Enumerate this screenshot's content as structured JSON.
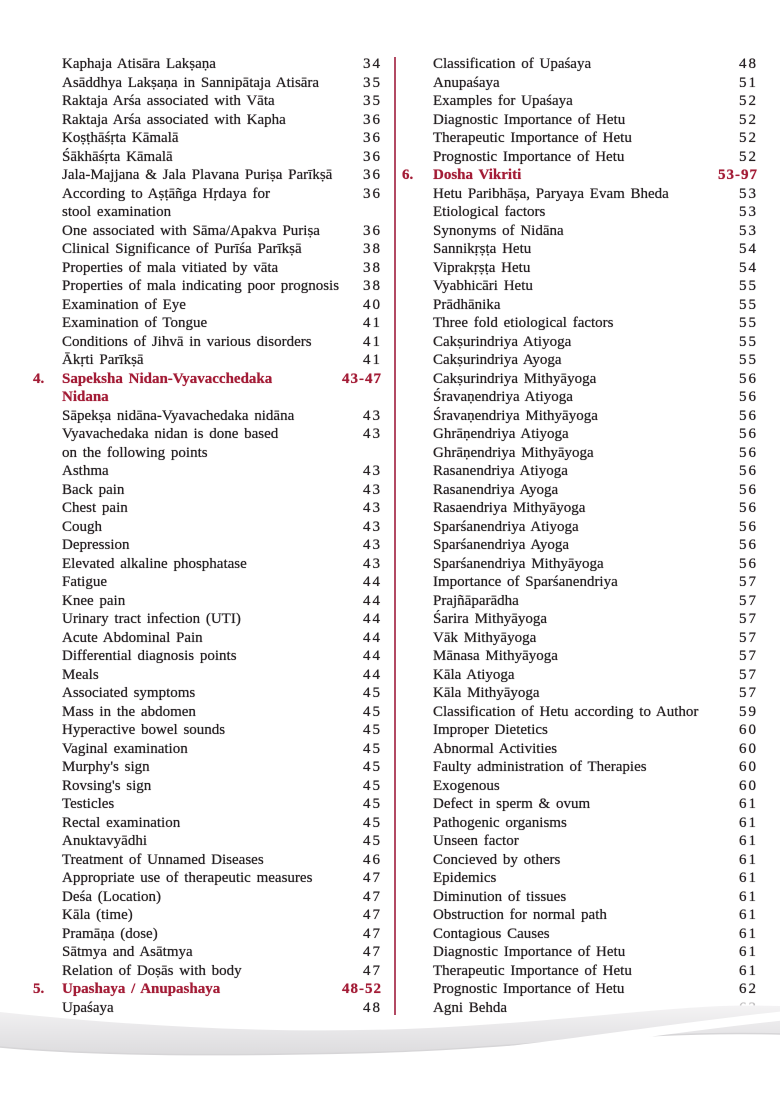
{
  "colors": {
    "text": "#262123",
    "accent": "#a31c36",
    "divider": "#b24a63",
    "wave_gray": "#e7e6e8",
    "wave_edge": "#d6d5d7"
  },
  "toc": {
    "left_column": [
      {
        "text": "Kaphaja Atisāra Lakṣaṇa",
        "page": "34"
      },
      {
        "text": "Asāddhya Lakṣaṇa in Sannipātaja Atisāra",
        "page": "35"
      },
      {
        "text": "Raktaja Arśa associated with Vāta",
        "page": "35"
      },
      {
        "text": "Raktaja Arśa associated with Kapha",
        "page": "36"
      },
      {
        "text": "Koṣṭhāśṛta Kāmalā",
        "page": "36"
      },
      {
        "text": "Śākhāśṛta Kāmalā",
        "page": "36"
      },
      {
        "text": "Jala-Majjana & Jala Plavana Puriṣa Parīkṣā",
        "page": "36"
      },
      {
        "text": "According to Aṣṭāñga Hṛdaya for",
        "text2": "stool examination",
        "page": "36"
      },
      {
        "text": "One associated with Sāma/Apakva Puriṣa",
        "page": "36"
      },
      {
        "text": "Clinical Significance of Purīśa Parīkṣā",
        "page": "38"
      },
      {
        "text": "Properties of mala vitiated by vāta",
        "page": "38"
      },
      {
        "text": "Properties of mala indicating poor prognosis",
        "page": "38"
      },
      {
        "text": "Examination of Eye",
        "page": "40"
      },
      {
        "text": "Examination of Tongue",
        "page": "41"
      },
      {
        "text": "Conditions of Jihvā in various disorders",
        "page": "41"
      },
      {
        "text": "Ākṛti Parīkṣā",
        "page": "41"
      },
      {
        "num": "4.",
        "text": "Sapeksha Nidan-Vyavacchedaka",
        "text2": "Nidana",
        "page": "43-47",
        "heading": true
      },
      {
        "text": "Sāpekṣa nidāna-Vyavachedaka nidāna",
        "page": "43"
      },
      {
        "text": "Vyavachedaka nidan is done based",
        "text2": "on the following points",
        "page": "43"
      },
      {
        "text": "Asthma",
        "page": "43"
      },
      {
        "text": "Back pain",
        "page": "43"
      },
      {
        "text": "Chest pain",
        "page": "43"
      },
      {
        "text": "Cough",
        "page": "43"
      },
      {
        "text": "Depression",
        "page": "43"
      },
      {
        "text": "Elevated alkaline phosphatase",
        "page": "43"
      },
      {
        "text": "Fatigue",
        "page": "44"
      },
      {
        "text": "Knee pain",
        "page": "44"
      },
      {
        "text": "Urinary tract infection (UTI)",
        "page": "44"
      },
      {
        "text": "Acute Abdominal Pain",
        "page": "44"
      },
      {
        "text": "Differential diagnosis points",
        "page": "44"
      },
      {
        "text": "Meals",
        "page": "44"
      },
      {
        "text": "Associated symptoms",
        "page": "45"
      },
      {
        "text": "Mass in the abdomen",
        "page": "45"
      },
      {
        "text": "Hyperactive bowel sounds",
        "page": "45"
      },
      {
        "text": "Vaginal examination",
        "page": "45"
      },
      {
        "text": "Murphy's sign",
        "page": "45"
      },
      {
        "text": "Rovsing's sign",
        "page": "45"
      },
      {
        "text": "Testicles",
        "page": "45"
      },
      {
        "text": "Rectal examination",
        "page": "45"
      },
      {
        "text": "Anuktavyādhi",
        "page": "45"
      },
      {
        "text": "Treatment of Unnamed Diseases",
        "page": "46"
      },
      {
        "text": "Appropriate use of therapeutic measures",
        "page": "47"
      },
      {
        "text": "Deśa (Location)",
        "page": "47"
      },
      {
        "text": "Kāla (time)",
        "page": "47"
      },
      {
        "text": "Pramāṇa (dose)",
        "page": "47"
      },
      {
        "text": "Sātmya and Asātmya",
        "page": "47"
      },
      {
        "text": "Relation of Doṣās with body",
        "page": "47"
      },
      {
        "num": "5.",
        "text": "Upashaya / Anupashaya",
        "page": "48-52",
        "heading": true
      },
      {
        "text": "Upaśaya",
        "page": "48"
      }
    ],
    "right_column": [
      {
        "text": "Classification of Upaśaya",
        "page": "48"
      },
      {
        "text": "Anupaśaya",
        "page": "51"
      },
      {
        "text": "Examples for Upaśaya",
        "page": "52"
      },
      {
        "text": "Diagnostic Importance of Hetu",
        "page": "52"
      },
      {
        "text": "Therapeutic Importance of Hetu",
        "page": "52"
      },
      {
        "text": "Prognostic Importance of Hetu",
        "page": "52"
      },
      {
        "num": "6.",
        "text": "Dosha Vikriti",
        "page": "53-97",
        "heading": true
      },
      {
        "text": "Hetu Paribhāṣa, Paryaya Evam Bheda",
        "page": "53"
      },
      {
        "text": "Etiological factors",
        "page": "53"
      },
      {
        "text": "Synonyms of Nidāna",
        "page": "53"
      },
      {
        "text": "Sannikṛṣṭa Hetu",
        "page": "54"
      },
      {
        "text": "Viprakṛṣṭa Hetu",
        "page": "54"
      },
      {
        "text": "Vyabhicāri Hetu",
        "page": "55"
      },
      {
        "text": "Prādhānika",
        "page": "55"
      },
      {
        "text": "Three fold etiological factors",
        "page": "55"
      },
      {
        "text": "Cakṣurindriya Atiyoga",
        "page": "55"
      },
      {
        "text": "Cakṣurindriya Ayoga",
        "page": "55"
      },
      {
        "text": "Cakṣurindriya Mithyāyoga",
        "page": "56"
      },
      {
        "text": "Śravaṇendriya Atiyoga",
        "page": "56"
      },
      {
        "text": "Śravaṇendriya Mithyāyoga",
        "page": "56"
      },
      {
        "text": "Ghrāṇendriya Atiyoga",
        "page": "56"
      },
      {
        "text": "Ghrāṇendriya Mithyāyoga",
        "page": "56"
      },
      {
        "text": "Rasanendriya Atiyoga",
        "page": "56"
      },
      {
        "text": "Rasanendriya Ayoga",
        "page": "56"
      },
      {
        "text": "Rasaendriya Mithyāyoga",
        "page": "56"
      },
      {
        "text": "Sparśanendriya Atiyoga",
        "page": "56"
      },
      {
        "text": "Sparśanendriya Ayoga",
        "page": "56"
      },
      {
        "text": "Sparśanendriya Mithyāyoga",
        "page": "56"
      },
      {
        "text": "Importance of Sparśanendriya",
        "page": "57"
      },
      {
        "text": "Prajñāparādha",
        "page": "57"
      },
      {
        "text": "Śarira Mithyāyoga",
        "page": "57"
      },
      {
        "text": "Vāk Mithyāyoga",
        "page": "57"
      },
      {
        "text": "Mānasa Mithyāyoga",
        "page": "57"
      },
      {
        "text": "Kāla Atiyoga",
        "page": "57"
      },
      {
        "text": "Kāla Mithyāyoga",
        "page": "57"
      },
      {
        "text": "Classification of Hetu according to Author",
        "page": "59"
      },
      {
        "text": "Improper Dietetics",
        "page": "60"
      },
      {
        "text": "Abnormal Activities",
        "page": "60"
      },
      {
        "text": "Faulty administration of Therapies",
        "page": "60"
      },
      {
        "text": "Exogenous",
        "page": "60"
      },
      {
        "text": "Defect in sperm & ovum",
        "page": "61"
      },
      {
        "text": "Pathogenic organisms",
        "page": "61"
      },
      {
        "text": "Unseen factor",
        "page": "61"
      },
      {
        "text": "Concieved by others",
        "page": "61"
      },
      {
        "text": "Epidemics",
        "page": "61"
      },
      {
        "text": "Diminution of tissues",
        "page": "61"
      },
      {
        "text": "Obstruction for normal path",
        "page": "61"
      },
      {
        "text": "Contagious Causes",
        "page": "61"
      },
      {
        "text": "Diagnostic Importance of Hetu",
        "page": "61"
      },
      {
        "text": "Therapeutic Importance of Hetu",
        "page": "61"
      },
      {
        "text": "Prognostic Importance of Hetu",
        "page": "62"
      },
      {
        "text": "Agni Behda",
        "page": "62"
      }
    ]
  }
}
